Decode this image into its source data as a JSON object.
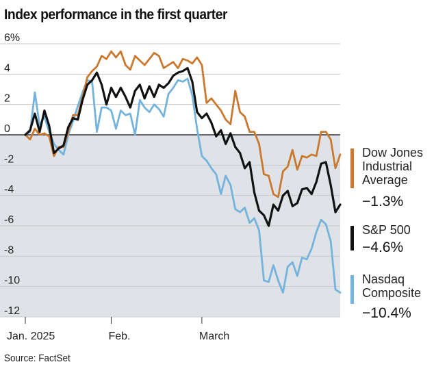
{
  "title": "Index performance in the first quarter",
  "source": "Source: FactSet",
  "chart_data": {
    "type": "line",
    "title": "Index performance in the first quarter",
    "xlabel": "",
    "ylabel": "",
    "ylim": [
      -12,
      6
    ],
    "yticks": [
      6,
      4,
      2,
      0,
      -2,
      -4,
      -6,
      -8,
      -10,
      -12
    ],
    "ytick_labels": [
      "6%",
      "4",
      "2",
      "0",
      "-2",
      "-4",
      "-6",
      "-8",
      "-10",
      "-12"
    ],
    "x_tick_labels": [
      {
        "label": "Jan. 2025",
        "index": 0
      },
      {
        "label": "Feb.",
        "index": 18
      },
      {
        "label": "March",
        "index": 37
      }
    ],
    "grid": true,
    "series": [
      {
        "name": "Dow Jones Industrial Average",
        "final_label": "−1.3%",
        "color": "#c9782e",
        "values": [
          0.0,
          -0.3,
          0.4,
          0.0,
          0.1,
          -0.1,
          -1.4,
          -0.8,
          -0.8,
          0.2,
          1.3,
          1.3,
          2.5,
          3.8,
          4.2,
          4.5,
          5.2,
          5.0,
          5.5,
          5.1,
          5.5,
          4.6,
          4.3,
          5.2,
          4.9,
          4.6,
          5.0,
          5.4,
          5.2,
          4.4,
          4.6,
          4.8,
          4.4,
          5.0,
          4.9,
          4.7,
          5.1,
          4.6,
          2.1,
          2.4,
          2.0,
          1.6,
          1.0,
          0.7,
          2.9,
          1.5,
          1.2,
          0.2,
          0.2,
          -0.6,
          -2.6,
          -2.7,
          -3.9,
          -4.1,
          -2.4,
          -2.1,
          -1.0,
          -2.3,
          -1.4,
          -1.5,
          -1.3,
          -1.4,
          0.2,
          0.2,
          -0.3,
          -2.2,
          -1.3
        ]
      },
      {
        "name": "S&P 500",
        "final_label": "−4.6%",
        "color": "#111111",
        "values": [
          0.0,
          0.3,
          1.4,
          0.2,
          1.6,
          0.6,
          -1.2,
          -0.9,
          -0.7,
          0.5,
          1.1,
          1.0,
          2.3,
          3.3,
          3.6,
          4.1,
          3.3,
          2.0,
          3.1,
          2.5,
          3.1,
          2.5,
          1.8,
          2.9,
          3.3,
          2.4,
          3.2,
          2.5,
          3.3,
          3.1,
          3.4,
          3.9,
          4.1,
          4.2,
          4.4,
          3.5,
          1.5,
          1.1,
          1.4,
          0.8,
          -0.1,
          0.3,
          -0.6,
          0.1,
          -0.8,
          -1.2,
          -2.2,
          -1.8,
          -3.8,
          -5.0,
          -5.3,
          -6.0,
          -4.6,
          -5.0,
          -4.0,
          -3.7,
          -4.7,
          -4.5,
          -3.6,
          -3.5,
          -3.9,
          -3.1,
          -1.9,
          -1.8,
          -3.3,
          -5.1,
          -4.6
        ]
      },
      {
        "name": "Nasdaq Composite",
        "final_label": "−10.4%",
        "color": "#74b3dc",
        "values": [
          0.0,
          0.2,
          2.8,
          0.6,
          1.2,
          0.2,
          -0.6,
          -1.0,
          -1.3,
          0.0,
          0.9,
          1.9,
          2.8,
          3.6,
          3.5,
          0.2,
          1.8,
          1.8,
          1.6,
          0.4,
          1.6,
          1.3,
          1.4,
          0.0,
          2.3,
          1.8,
          1.5,
          2.0,
          1.7,
          1.2,
          2.7,
          3.1,
          3.6,
          3.5,
          3.7,
          2.6,
          0.4,
          -1.4,
          -1.7,
          -2.2,
          -2.6,
          -3.9,
          -2.7,
          -3.3,
          -4.9,
          -5.1,
          -4.8,
          -5.8,
          -5.5,
          -6.3,
          -9.6,
          -9.7,
          -8.6,
          -9.6,
          -10.4,
          -8.7,
          -8.4,
          -9.3,
          -8.1,
          -8.2,
          -7.5,
          -6.4,
          -5.6,
          -5.9,
          -7.0,
          -10.2,
          -10.4
        ]
      }
    ]
  }
}
